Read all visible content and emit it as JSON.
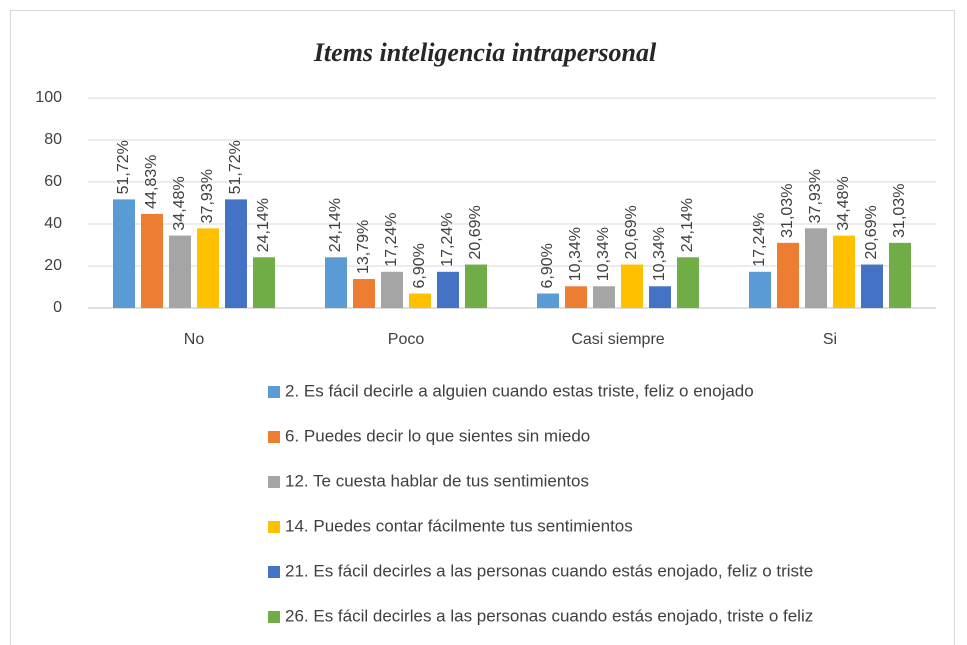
{
  "chart_data": {
    "type": "bar",
    "title": "Items inteligencia intrapersonal",
    "categories": [
      "No",
      "Poco",
      "Casi  siempre",
      "Si"
    ],
    "ylim": [
      0,
      100
    ],
    "yticks": [
      0,
      20,
      40,
      60,
      80,
      100
    ],
    "grid": true,
    "legend": "bottom",
    "series": [
      {
        "name": "2. Es fácil decirle a alguien cuando estas triste, feliz o enojado",
        "color": "#5b9bd5",
        "values": [
          51.72,
          24.14,
          6.9,
          17.24
        ],
        "value_labels": [
          "51,72%",
          "24,14%",
          "6,90%",
          "17,24%"
        ]
      },
      {
        "name": "6. Puedes decir lo que sientes sin miedo",
        "color": "#ed7d31",
        "values": [
          44.83,
          13.79,
          10.34,
          31.03
        ],
        "value_labels": [
          "44,83%",
          "13,79%",
          "10,34%",
          "31,03%"
        ]
      },
      {
        "name": "12. Te cuesta hablar de tus sentimientos",
        "color": "#a5a5a5",
        "values": [
          34.48,
          17.24,
          10.34,
          37.93
        ],
        "value_labels": [
          "34,48%",
          "17,24%",
          "10,34%",
          "37,93%"
        ]
      },
      {
        "name": "14. Puedes contar fácilmente tus sentimientos",
        "color": "#ffc000",
        "values": [
          37.93,
          6.9,
          20.69,
          34.48
        ],
        "value_labels": [
          "37,93%",
          "6,90%",
          "20,69%",
          "34,48%"
        ]
      },
      {
        "name": "21. Es fácil decirles a las personas cuando estás enojado, feliz o triste",
        "color": "#4472c4",
        "values": [
          51.72,
          17.24,
          10.34,
          20.69
        ],
        "value_labels": [
          "51,72%",
          "17,24%",
          "10,34%",
          "20,69%"
        ]
      },
      {
        "name": "26. Es fácil decirles a las personas cuando estás enojado, triste o feliz",
        "color": "#70ad47",
        "values": [
          24.14,
          20.69,
          24.14,
          31.03
        ],
        "value_labels": [
          "24,14%",
          "20,69%",
          "24,14%",
          "31,03%"
        ]
      }
    ]
  }
}
